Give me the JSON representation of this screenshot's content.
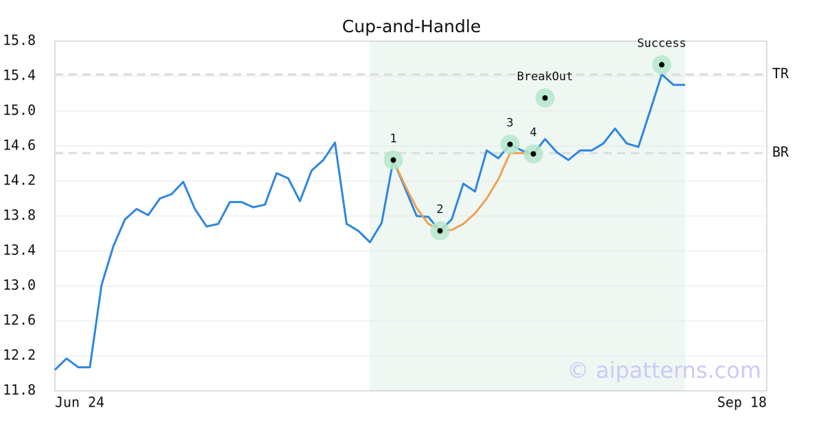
{
  "chart_data": {
    "type": "line",
    "title": "Cup-and-Handle",
    "categories": [
      "Jun 24",
      null,
      null,
      null,
      null,
      null,
      null,
      null,
      null,
      null,
      null,
      null,
      null,
      null,
      null,
      null,
      null,
      null,
      null,
      null,
      null,
      null,
      null,
      null,
      null,
      null,
      null,
      null,
      null,
      null,
      null,
      null,
      null,
      null,
      null,
      null,
      null,
      null,
      null,
      null,
      null,
      null,
      null,
      null,
      null,
      null,
      null,
      null,
      null,
      null,
      null,
      null,
      null,
      null,
      null,
      null,
      null,
      null,
      null,
      null,
      null,
      "Sep 18"
    ],
    "series": [
      {
        "color": "#2e86de",
        "values": [
          12.04,
          12.17,
          12.07,
          12.07,
          13.01,
          13.45,
          13.76,
          13.88,
          13.81,
          14.0,
          14.05,
          14.19,
          13.88,
          13.68,
          13.71,
          13.96,
          13.96,
          13.9,
          13.93,
          14.29,
          14.23,
          13.97,
          14.32,
          14.44,
          14.64,
          13.71,
          13.63,
          13.5,
          13.72,
          14.44,
          14.12,
          13.8,
          13.79,
          13.63,
          13.76,
          14.17,
          14.08,
          14.55,
          14.46,
          14.62,
          14.55,
          14.51,
          14.68,
          14.53,
          14.44,
          14.55,
          14.55,
          14.63,
          14.8,
          14.63,
          14.59,
          15.0,
          15.42,
          15.3,
          15.3,
          null,
          null,
          null,
          null,
          null,
          null,
          null
        ]
      },
      {
        "color": "#f0a050",
        "values": [
          null,
          null,
          null,
          null,
          null,
          null,
          null,
          null,
          null,
          null,
          null,
          null,
          null,
          null,
          null,
          null,
          null,
          null,
          null,
          null,
          null,
          null,
          null,
          null,
          null,
          null,
          null,
          null,
          null,
          14.44,
          14.15,
          13.89,
          13.71,
          13.64,
          13.64,
          13.71,
          13.83,
          14.0,
          14.22,
          14.52,
          14.52,
          14.51,
          null,
          null,
          null,
          null,
          null,
          null,
          null,
          null,
          null,
          null,
          null,
          null,
          null,
          null,
          null,
          null,
          null,
          null,
          null,
          null
        ]
      }
    ],
    "ylim": [
      11.8,
      15.8
    ],
    "yticks": [
      11.8,
      12.2,
      12.6,
      {
        "value": 13,
        "label": "13.0"
      },
      13.4,
      13.8,
      14.2,
      14.6,
      {
        "value": 15,
        "label": "15.0"
      },
      15.4,
      15.8
    ],
    "grid": true,
    "reference_lines": [
      {
        "label": "TR",
        "value": 15.42
      },
      {
        "label": "BR",
        "value": 14.52
      }
    ],
    "annotations": [
      {
        "label": "1",
        "index": 29,
        "value": 14.44
      },
      {
        "label": "2",
        "index": 33,
        "value": 13.63
      },
      {
        "label": "3",
        "index": 39,
        "value": 14.62
      },
      {
        "label": "4",
        "index": 41,
        "value": 14.51
      },
      {
        "label": "BreakOut",
        "index": 42,
        "value": 15.15
      },
      {
        "label": "Success",
        "index": 52,
        "value": 15.53
      }
    ],
    "watermark": "© aipatterns.com"
  }
}
